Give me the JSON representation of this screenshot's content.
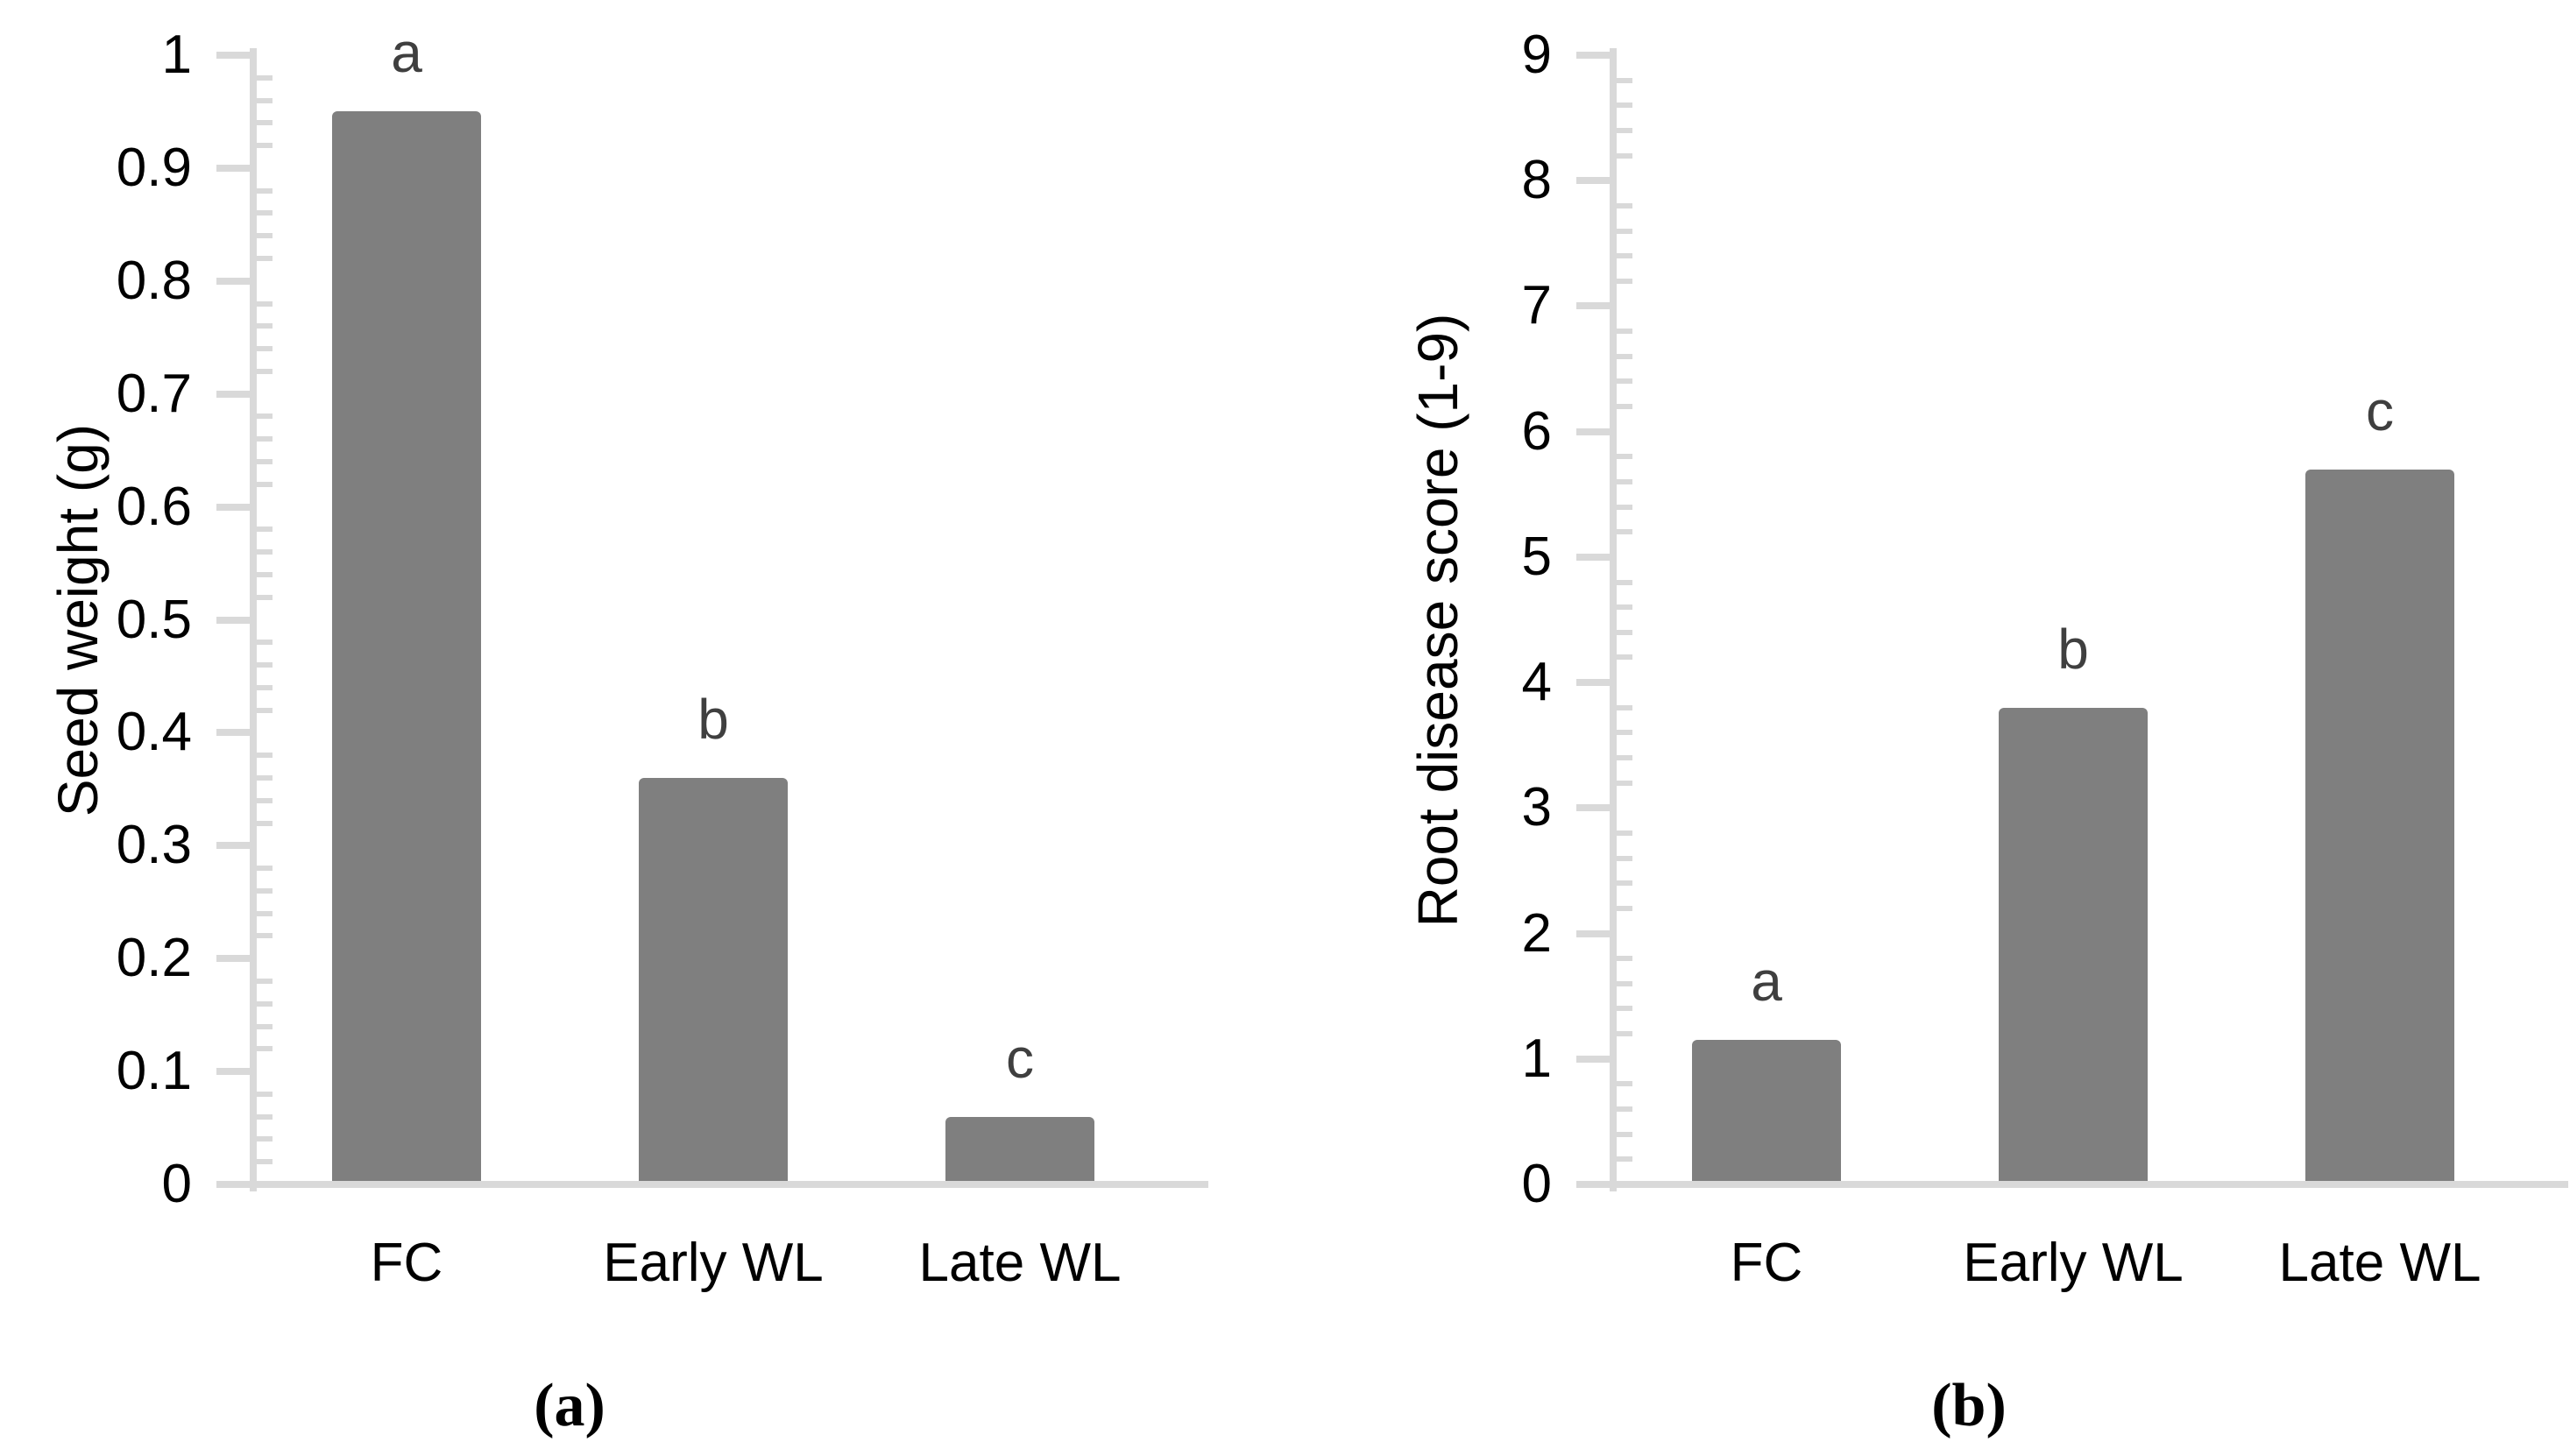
{
  "figure": {
    "background": "#ffffff",
    "bar_color": "#7f7f7f",
    "axis_color": "#d9d9d9",
    "text_color": "#000000",
    "sig_letter_color": "#3f3f3f"
  },
  "chart_data": [
    {
      "type": "bar",
      "panel_label": "(a)",
      "title": "",
      "xlabel": "",
      "ylabel": "Seed weight (g)",
      "categories": [
        "FC",
        "Early WL",
        "Late WL"
      ],
      "values": [
        0.95,
        0.36,
        0.06
      ],
      "sig_letters": [
        "a",
        "b",
        "c"
      ],
      "ylim": [
        0,
        1
      ],
      "y_major_step": 0.1,
      "y_minor_divisions": 5,
      "y_tick_labels": [
        "0",
        "0.1",
        "0.2",
        "0.3",
        "0.4",
        "0.5",
        "0.6",
        "0.7",
        "0.8",
        "0.9",
        "1"
      ],
      "grid": false,
      "legend_position": "none"
    },
    {
      "type": "bar",
      "panel_label": "(b)",
      "title": "",
      "xlabel": "",
      "ylabel": "Root disease score (1-9)",
      "categories": [
        "FC",
        "Early WL",
        "Late WL"
      ],
      "values": [
        1.15,
        3.8,
        5.7
      ],
      "sig_letters": [
        "a",
        "b",
        "c"
      ],
      "ylim": [
        0,
        9
      ],
      "y_major_step": 1,
      "y_minor_divisions": 5,
      "y_tick_labels": [
        "0",
        "1",
        "2",
        "3",
        "4",
        "5",
        "6",
        "7",
        "8",
        "9"
      ],
      "grid": false,
      "legend_position": "none"
    }
  ]
}
